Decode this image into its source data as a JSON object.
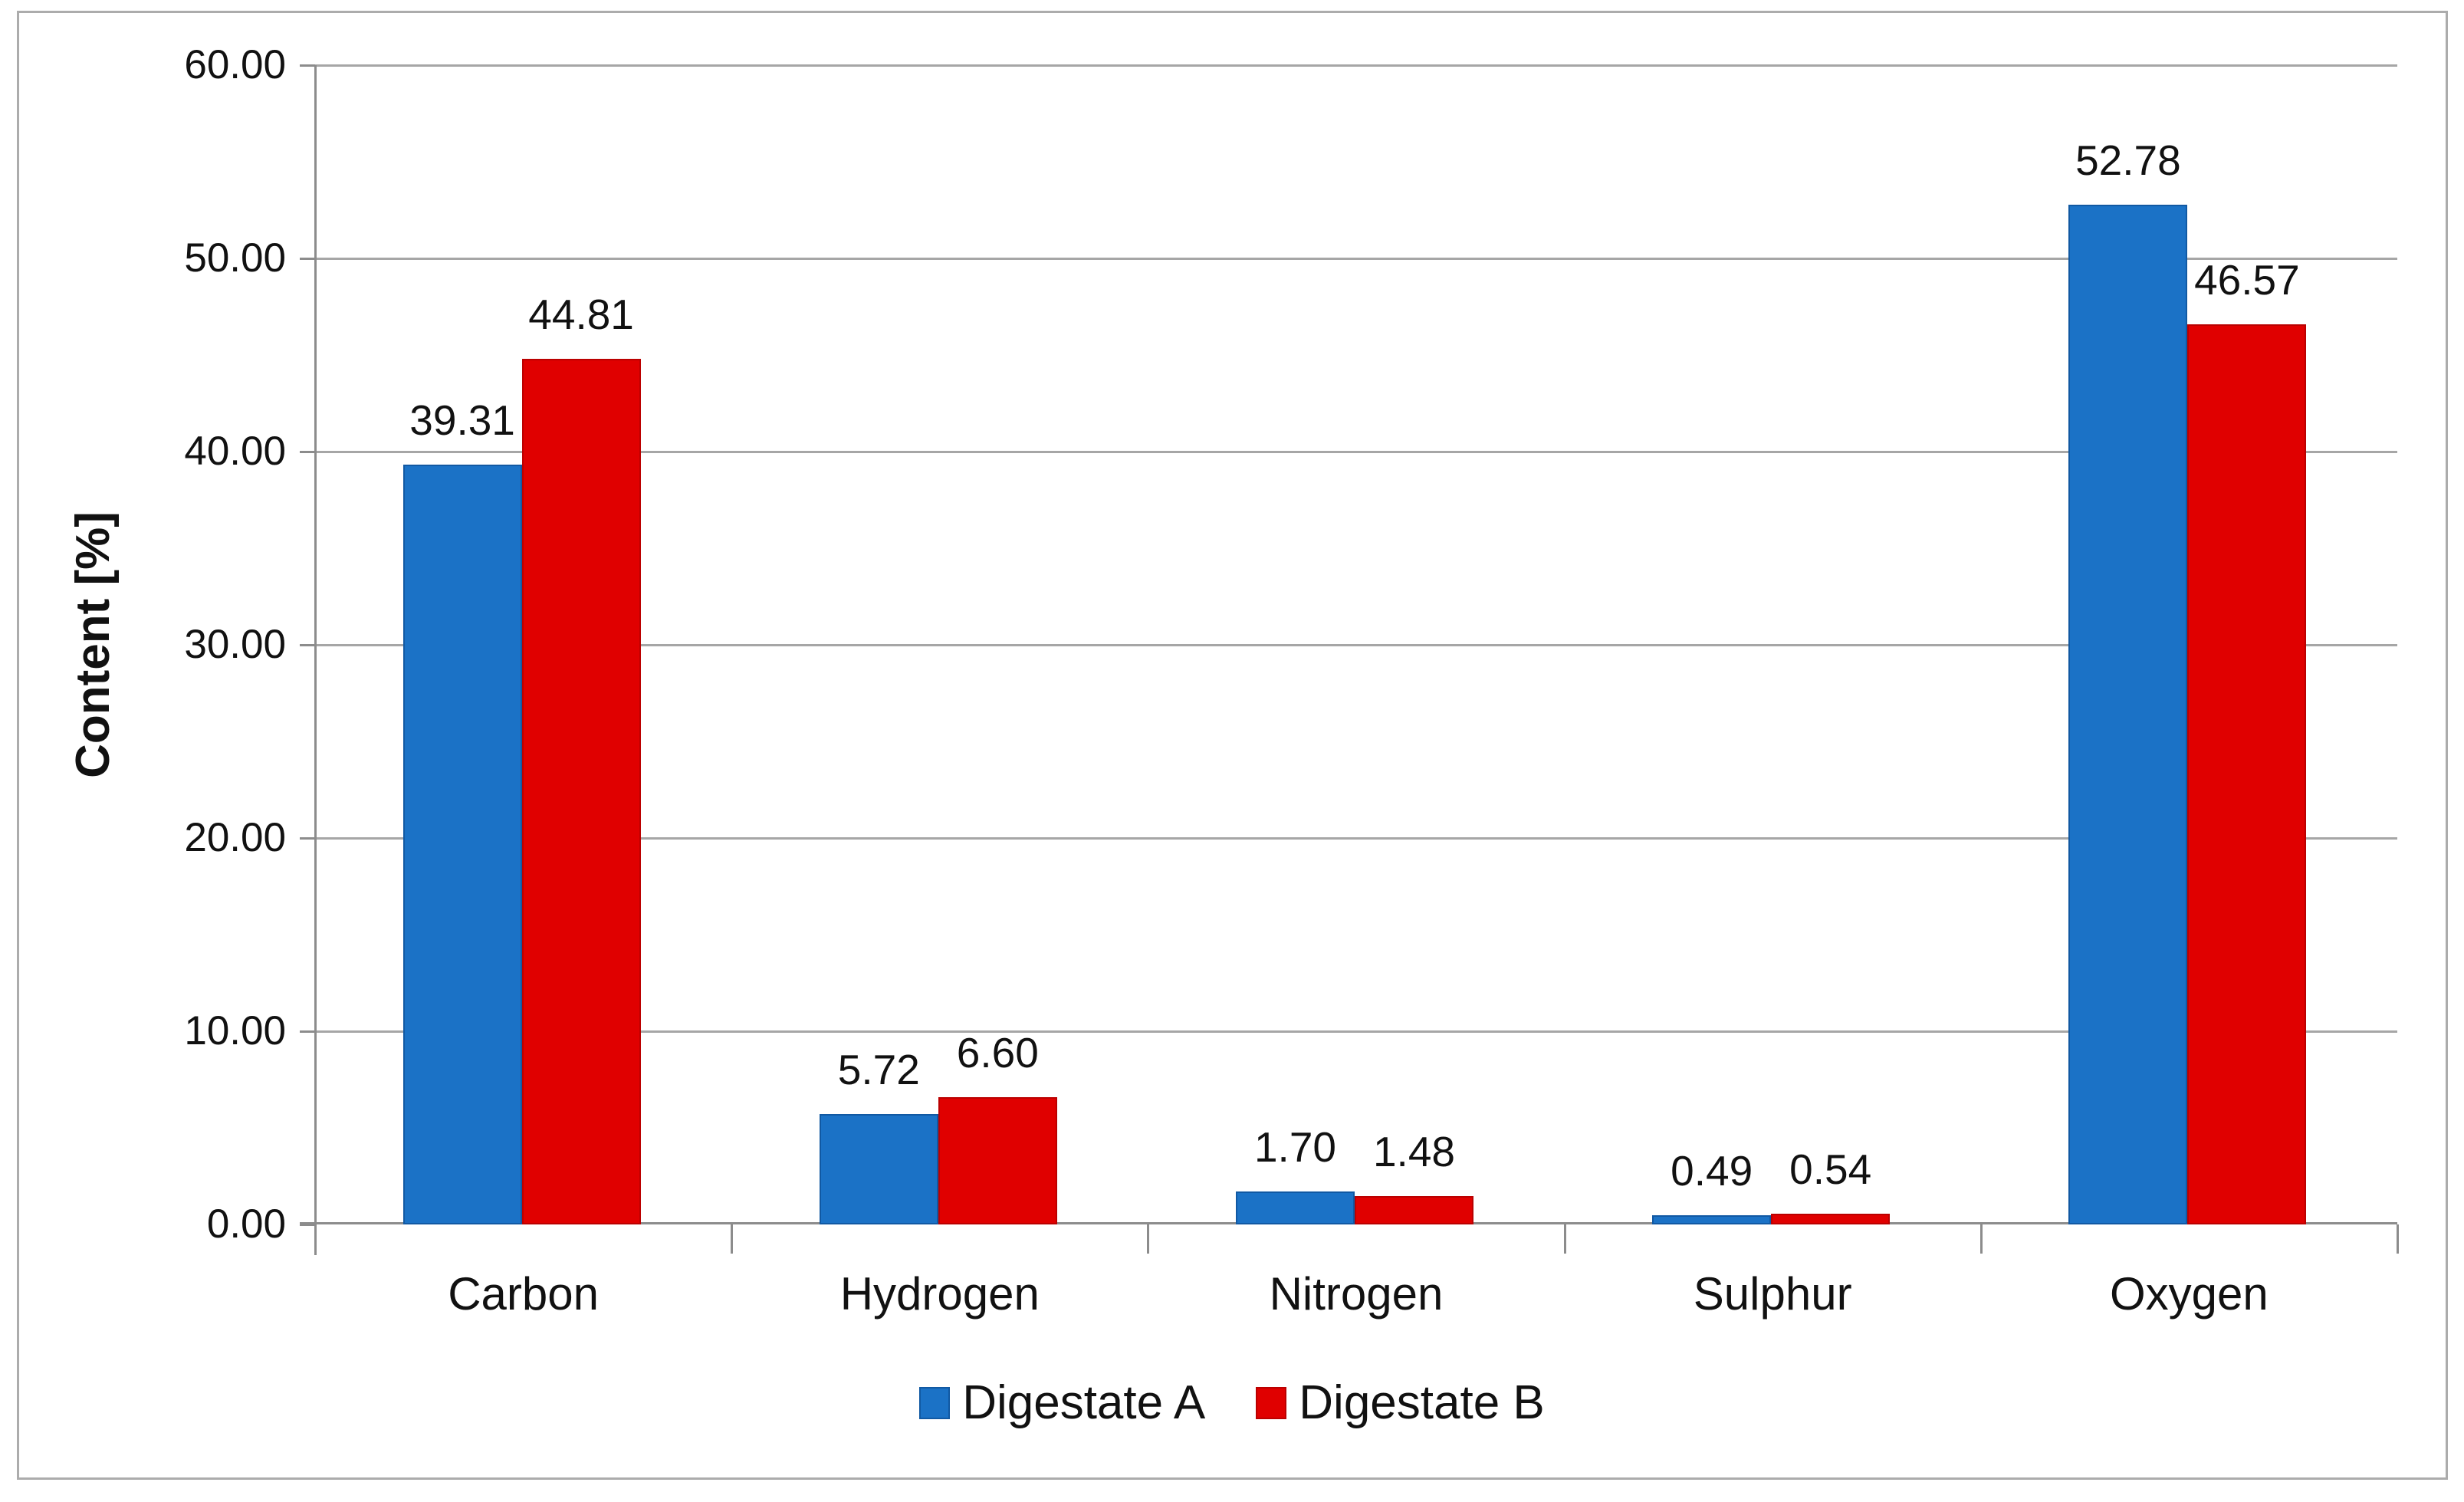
{
  "chart_data": {
    "type": "bar",
    "title": "",
    "xlabel": "",
    "ylabel": "Content [%]",
    "categories": [
      "Carbon",
      "Hydrogen",
      "Nitrogen",
      "Sulphur",
      "Oxygen"
    ],
    "series": [
      {
        "name": "Digestate A",
        "color": "#1B72C6",
        "edge_color": "#1159A3",
        "values": [
          39.31,
          5.72,
          1.7,
          0.49,
          52.78
        ]
      },
      {
        "name": "Digestate B",
        "color": "#E00000",
        "edge_color": "#BB0000",
        "values": [
          44.81,
          6.6,
          1.48,
          0.54,
          46.57
        ]
      }
    ],
    "value_labels": [
      [
        "39.31",
        "44.81"
      ],
      [
        "5.72",
        "6.60"
      ],
      [
        "1.70",
        "1.48"
      ],
      [
        "0.49",
        "0.54"
      ],
      [
        "52.78",
        "46.57"
      ]
    ],
    "ylim": [
      0,
      60
    ],
    "ytick_step": 10,
    "ytick_labels": [
      "0.00",
      "10.00",
      "20.00",
      "30.00",
      "40.00",
      "50.00",
      "60.00"
    ],
    "grid": true,
    "legend_position": "bottom",
    "colors": {
      "gridline": "#A6A6A6",
      "axis": "#8C8C8C",
      "text": "#111111",
      "frame_border": "#ACACAC",
      "background": "#FFFFFF"
    }
  }
}
